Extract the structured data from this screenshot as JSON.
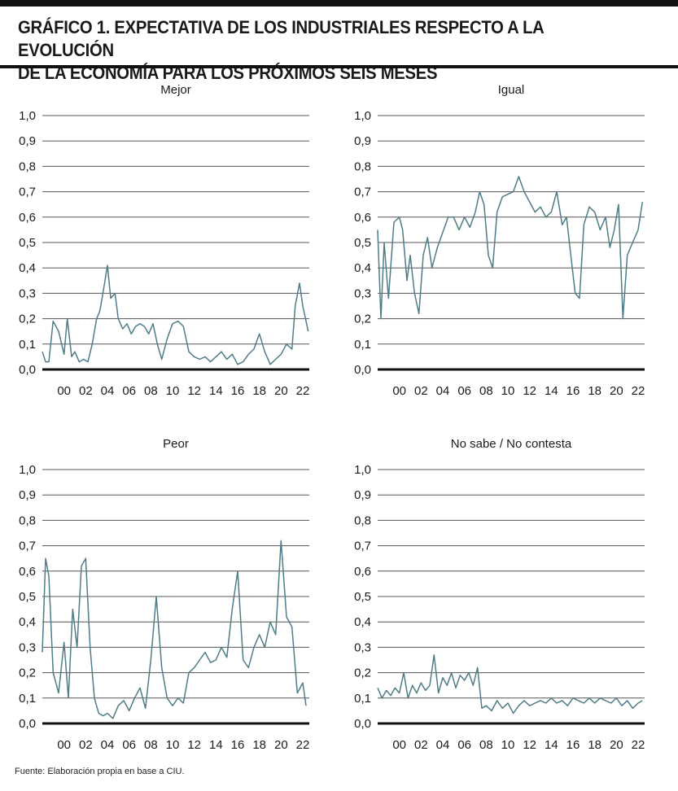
{
  "header": {
    "title_line1": "GRÁFICO 1. EXPECTATIVA DE LOS INDUSTRIALES RESPECTO A LA EVOLUCIÓN",
    "title_line2": "DE LA ECONOMÍA PARA LOS PRÓXIMOS SEIS MESES"
  },
  "footer": {
    "source": "Fuente: Elaboración propia en base a CIU."
  },
  "colors": {
    "line": "#4e7d87",
    "grid": "#555555",
    "axis": "#111111"
  },
  "chart_data": [
    {
      "type": "line",
      "title": "Mejor",
      "ylim": [
        0,
        1.0
      ],
      "yticks": [
        "0,0",
        "0,1",
        "0,2",
        "0,3",
        "0,4",
        "0,5",
        "0,6",
        "0,7",
        "0,8",
        "0,9",
        "1,0"
      ],
      "xlim": [
        1998,
        2022.6
      ],
      "xticks": [
        "00",
        "02",
        "04",
        "06",
        "08",
        "10",
        "12",
        "14",
        "16",
        "18",
        "20",
        "22"
      ],
      "series": [
        {
          "name": "Mejor",
          "x": [
            1998,
            1998.3,
            1998.6,
            1999,
            1999.5,
            2000,
            2000.3,
            2000.7,
            2001,
            2001.4,
            2001.8,
            2002.2,
            2002.6,
            2003,
            2003.3,
            2003.7,
            2004,
            2004.3,
            2004.7,
            2005,
            2005.4,
            2005.8,
            2006.2,
            2006.6,
            2007,
            2007.4,
            2007.8,
            2008.2,
            2008.6,
            2009,
            2009.5,
            2010,
            2010.5,
            2011,
            2011.5,
            2012,
            2012.5,
            2013,
            2013.5,
            2014,
            2014.5,
            2015,
            2015.5,
            2016,
            2016.5,
            2017,
            2017.5,
            2018,
            2018.5,
            2019,
            2019.5,
            2020,
            2020.5,
            2021,
            2021.3,
            2021.7,
            2022,
            2022.5
          ],
          "values": [
            0.07,
            0.03,
            0.03,
            0.19,
            0.15,
            0.06,
            0.2,
            0.05,
            0.07,
            0.03,
            0.04,
            0.03,
            0.1,
            0.2,
            0.23,
            0.33,
            0.41,
            0.28,
            0.3,
            0.2,
            0.16,
            0.18,
            0.14,
            0.17,
            0.18,
            0.17,
            0.14,
            0.18,
            0.1,
            0.04,
            0.12,
            0.18,
            0.19,
            0.17,
            0.07,
            0.05,
            0.04,
            0.05,
            0.03,
            0.05,
            0.07,
            0.04,
            0.06,
            0.02,
            0.03,
            0.06,
            0.08,
            0.14,
            0.07,
            0.02,
            0.04,
            0.06,
            0.1,
            0.08,
            0.25,
            0.34,
            0.25,
            0.15
          ]
        }
      ]
    },
    {
      "type": "line",
      "title": "Igual",
      "ylim": [
        0,
        1.0
      ],
      "yticks": [
        "0,0",
        "0,1",
        "0,2",
        "0,3",
        "0,4",
        "0,5",
        "0,6",
        "0,7",
        "0,8",
        "0,9",
        "1,0"
      ],
      "xlim": [
        1998,
        2022.6
      ],
      "xticks": [
        "00",
        "02",
        "04",
        "06",
        "08",
        "10",
        "12",
        "14",
        "16",
        "18",
        "20",
        "22"
      ],
      "series": [
        {
          "name": "Igual",
          "x": [
            1998,
            1998.3,
            1998.6,
            1999,
            1999.5,
            2000,
            2000.3,
            2000.7,
            2001,
            2001.4,
            2001.8,
            2002.2,
            2002.6,
            2003,
            2003.5,
            2004,
            2004.5,
            2005,
            2005.5,
            2006,
            2006.5,
            2007,
            2007.4,
            2007.8,
            2008.2,
            2008.6,
            2009,
            2009.5,
            2010,
            2010.5,
            2011,
            2011.5,
            2012,
            2012.5,
            2013,
            2013.5,
            2014,
            2014.5,
            2015,
            2015.4,
            2015.8,
            2016.2,
            2016.6,
            2017,
            2017.5,
            2018,
            2018.5,
            2019,
            2019.4,
            2019.8,
            2020.2,
            2020.6,
            2021,
            2021.5,
            2022,
            2022.4
          ],
          "values": [
            0.55,
            0.2,
            0.5,
            0.28,
            0.58,
            0.6,
            0.55,
            0.35,
            0.45,
            0.3,
            0.22,
            0.45,
            0.52,
            0.4,
            0.48,
            0.54,
            0.6,
            0.6,
            0.55,
            0.6,
            0.56,
            0.62,
            0.7,
            0.65,
            0.45,
            0.4,
            0.62,
            0.68,
            0.69,
            0.7,
            0.76,
            0.7,
            0.66,
            0.62,
            0.64,
            0.6,
            0.62,
            0.7,
            0.57,
            0.6,
            0.45,
            0.3,
            0.28,
            0.57,
            0.64,
            0.62,
            0.55,
            0.6,
            0.48,
            0.55,
            0.65,
            0.2,
            0.45,
            0.5,
            0.55,
            0.66
          ]
        }
      ]
    },
    {
      "type": "line",
      "title": "Peor",
      "ylim": [
        0,
        1.0
      ],
      "yticks": [
        "0,0",
        "0,1",
        "0,2",
        "0,3",
        "0,4",
        "0,5",
        "0,6",
        "0,7",
        "0,8",
        "0,9",
        "1,0"
      ],
      "xlim": [
        1998,
        2022.6
      ],
      "xticks": [
        "00",
        "02",
        "04",
        "06",
        "08",
        "10",
        "12",
        "14",
        "16",
        "18",
        "20",
        "22"
      ],
      "series": [
        {
          "name": "Peor",
          "x": [
            1998,
            1998.3,
            1998.6,
            1999,
            1999.5,
            2000,
            2000.4,
            2000.8,
            2001.2,
            2001.6,
            2002,
            2002.4,
            2002.8,
            2003.2,
            2003.6,
            2004,
            2004.5,
            2005,
            2005.5,
            2006,
            2006.5,
            2007,
            2007.5,
            2008,
            2008.5,
            2009,
            2009.5,
            2010,
            2010.5,
            2011,
            2011.5,
            2012,
            2012.5,
            2013,
            2013.5,
            2014,
            2014.5,
            2015,
            2015.5,
            2016,
            2016.5,
            2017,
            2017.5,
            2018,
            2018.5,
            2019,
            2019.5,
            2020,
            2020.5,
            2021,
            2021.5,
            2022,
            2022.3
          ],
          "values": [
            0.28,
            0.65,
            0.58,
            0.2,
            0.12,
            0.32,
            0.1,
            0.45,
            0.3,
            0.62,
            0.65,
            0.3,
            0.1,
            0.04,
            0.03,
            0.04,
            0.02,
            0.07,
            0.09,
            0.05,
            0.1,
            0.14,
            0.06,
            0.25,
            0.5,
            0.22,
            0.1,
            0.07,
            0.1,
            0.08,
            0.2,
            0.22,
            0.25,
            0.28,
            0.24,
            0.25,
            0.3,
            0.26,
            0.45,
            0.6,
            0.25,
            0.22,
            0.3,
            0.35,
            0.3,
            0.4,
            0.35,
            0.72,
            0.42,
            0.38,
            0.12,
            0.16,
            0.07
          ]
        }
      ]
    },
    {
      "type": "line",
      "title": "No sabe / No contesta",
      "ylim": [
        0,
        1.0
      ],
      "yticks": [
        "0,0",
        "0,1",
        "0,2",
        "0,3",
        "0,4",
        "0,5",
        "0,6",
        "0,7",
        "0,8",
        "0,9",
        "1,0"
      ],
      "xlim": [
        1998,
        2022.6
      ],
      "xticks": [
        "00",
        "02",
        "04",
        "06",
        "08",
        "10",
        "12",
        "14",
        "16",
        "18",
        "20",
        "22"
      ],
      "series": [
        {
          "name": "No sabe / No contesta",
          "x": [
            1998,
            1998.4,
            1998.8,
            1999.2,
            1999.6,
            2000,
            2000.4,
            2000.8,
            2001.2,
            2001.6,
            2002,
            2002.4,
            2002.8,
            2003.2,
            2003.6,
            2004,
            2004.4,
            2004.8,
            2005.2,
            2005.6,
            2006,
            2006.4,
            2006.8,
            2007.2,
            2007.6,
            2008,
            2008.5,
            2009,
            2009.5,
            2010,
            2010.5,
            2011,
            2011.5,
            2012,
            2012.5,
            2013,
            2013.5,
            2014,
            2014.5,
            2015,
            2015.5,
            2016,
            2016.5,
            2017,
            2017.5,
            2018,
            2018.5,
            2019,
            2019.5,
            2020,
            2020.5,
            2021,
            2021.5,
            2022,
            2022.4
          ],
          "values": [
            0.14,
            0.1,
            0.13,
            0.11,
            0.14,
            0.12,
            0.2,
            0.1,
            0.15,
            0.12,
            0.16,
            0.13,
            0.15,
            0.27,
            0.12,
            0.18,
            0.15,
            0.2,
            0.14,
            0.19,
            0.17,
            0.2,
            0.15,
            0.22,
            0.06,
            0.07,
            0.05,
            0.09,
            0.06,
            0.08,
            0.04,
            0.07,
            0.09,
            0.07,
            0.08,
            0.09,
            0.08,
            0.1,
            0.08,
            0.09,
            0.07,
            0.1,
            0.09,
            0.08,
            0.1,
            0.08,
            0.1,
            0.09,
            0.08,
            0.1,
            0.07,
            0.09,
            0.06,
            0.08,
            0.09
          ]
        }
      ]
    }
  ]
}
